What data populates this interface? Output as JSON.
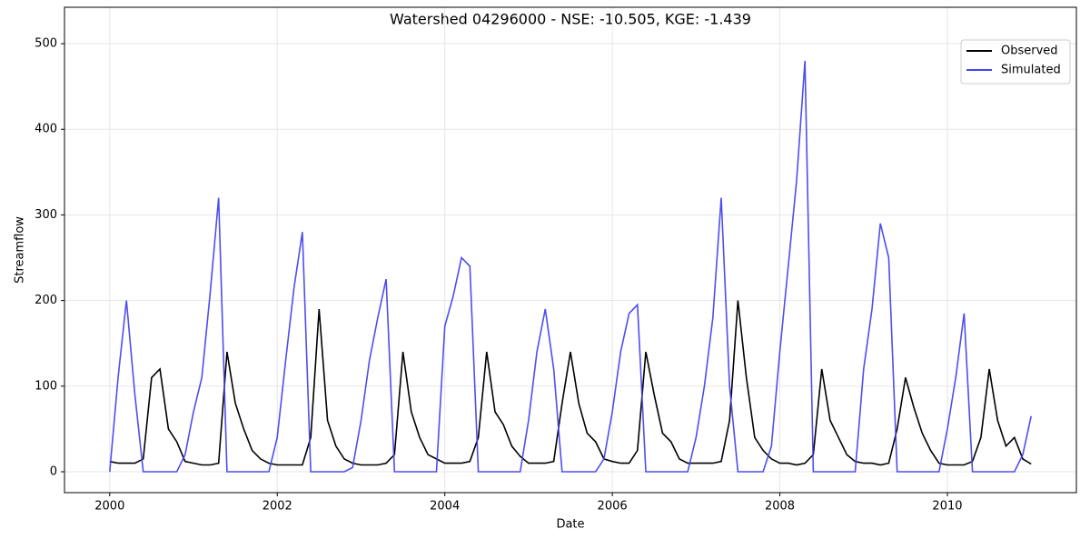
{
  "chart_data": {
    "type": "line",
    "title": "Watershed 04296000 - NSE: -10.505, KGE: -1.439",
    "x_label": "Date",
    "y_label": "Streamflow",
    "x": [
      2000.0,
      2000.1,
      2000.2,
      2000.3,
      2000.4,
      2000.5,
      2000.6,
      2000.7,
      2000.8,
      2000.9,
      2001.0,
      2001.1,
      2001.2,
      2001.3,
      2001.4,
      2001.5,
      2001.6,
      2001.7,
      2001.8,
      2001.9,
      2002.0,
      2002.1,
      2002.2,
      2002.3,
      2002.4,
      2002.5,
      2002.6,
      2002.7,
      2002.8,
      2002.9,
      2003.0,
      2003.1,
      2003.2,
      2003.3,
      2003.4,
      2003.5,
      2003.6,
      2003.7,
      2003.8,
      2003.9,
      2004.0,
      2004.1,
      2004.2,
      2004.3,
      2004.4,
      2004.5,
      2004.6,
      2004.7,
      2004.8,
      2004.9,
      2005.0,
      2005.1,
      2005.2,
      2005.3,
      2005.4,
      2005.5,
      2005.6,
      2005.7,
      2005.8,
      2005.9,
      2006.0,
      2006.1,
      2006.2,
      2006.3,
      2006.4,
      2006.5,
      2006.6,
      2006.7,
      2006.8,
      2006.9,
      2007.0,
      2007.1,
      2007.2,
      2007.3,
      2007.4,
      2007.5,
      2007.6,
      2007.7,
      2007.8,
      2007.9,
      2008.0,
      2008.1,
      2008.2,
      2008.3,
      2008.4,
      2008.5,
      2008.6,
      2008.7,
      2008.8,
      2008.9,
      2009.0,
      2009.1,
      2009.2,
      2009.3,
      2009.4,
      2009.5,
      2009.6,
      2009.7,
      2009.8,
      2009.9,
      2010.0,
      2010.1,
      2010.2,
      2010.3,
      2010.4,
      2010.5,
      2010.6,
      2010.7,
      2010.8,
      2010.9,
      2011.0
    ],
    "series": [
      {
        "name": "Observed",
        "color": "#000000",
        "values": [
          12,
          10,
          10,
          10,
          15,
          110,
          120,
          50,
          35,
          12,
          10,
          8,
          8,
          10,
          140,
          80,
          50,
          25,
          15,
          10,
          8,
          8,
          8,
          8,
          40,
          190,
          60,
          30,
          15,
          10,
          8,
          8,
          8,
          10,
          20,
          140,
          70,
          40,
          20,
          15,
          10,
          10,
          10,
          12,
          40,
          140,
          70,
          55,
          30,
          18,
          10,
          10,
          10,
          12,
          80,
          140,
          80,
          45,
          35,
          15,
          12,
          10,
          10,
          25,
          140,
          90,
          45,
          35,
          15,
          10,
          10,
          10,
          10,
          12,
          60,
          200,
          110,
          40,
          25,
          15,
          10,
          10,
          8,
          10,
          20,
          120,
          60,
          40,
          20,
          12,
          10,
          10,
          8,
          10,
          50,
          110,
          75,
          45,
          25,
          10,
          8,
          8,
          8,
          12,
          40,
          120,
          60,
          30,
          40,
          15,
          9
        ]
      },
      {
        "name": "Simulated",
        "color": "#4444ee",
        "values": [
          0,
          110,
          200,
          90,
          0,
          0,
          0,
          0,
          0,
          20,
          70,
          110,
          210,
          320,
          0,
          0,
          0,
          0,
          0,
          0,
          40,
          130,
          215,
          280,
          0,
          0,
          0,
          0,
          0,
          5,
          60,
          130,
          180,
          225,
          0,
          0,
          0,
          0,
          0,
          0,
          170,
          205,
          250,
          240,
          0,
          0,
          0,
          0,
          0,
          0,
          60,
          140,
          190,
          120,
          0,
          0,
          0,
          0,
          0,
          15,
          70,
          140,
          185,
          195,
          0,
          0,
          0,
          0,
          0,
          0,
          40,
          100,
          180,
          320,
          100,
          0,
          0,
          0,
          0,
          30,
          140,
          240,
          340,
          480,
          0,
          0,
          0,
          0,
          0,
          0,
          120,
          190,
          290,
          250,
          0,
          0,
          0,
          0,
          0,
          0,
          50,
          110,
          185,
          0,
          0,
          0,
          0,
          0,
          0,
          20,
          65
        ]
      }
    ],
    "xlim": [
      1999.46,
      2011.54
    ],
    "xticks": [
      2000,
      2002,
      2004,
      2006,
      2008,
      2010
    ],
    "ylim": [
      -24.4,
      542.5
    ],
    "yticks": [
      0,
      100,
      200,
      300,
      400,
      500
    ],
    "grid": true,
    "legend": "upper right"
  }
}
